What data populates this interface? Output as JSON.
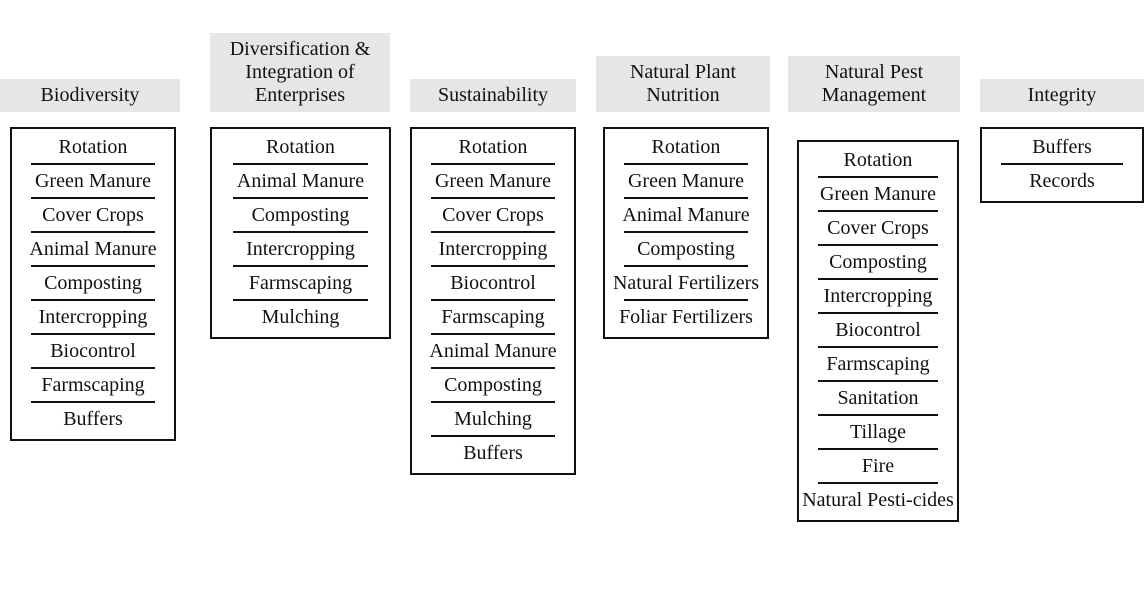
{
  "columns": [
    {
      "header": "Biodiversity",
      "items": [
        "Rotation",
        "Green Manure",
        "Cover Crops",
        "Animal Manure",
        "Composting",
        "Intercropping",
        "Biocontrol",
        "Farmscaping",
        "Buffers"
      ]
    },
    {
      "header": "Diversification & Integration of Enterprises",
      "items": [
        "Rotation",
        "Animal Manure",
        "Composting",
        "Intercropping",
        "Farmscaping",
        "Mulching"
      ]
    },
    {
      "header": "Sustainability",
      "items": [
        "Rotation",
        "Green Manure",
        "Cover Crops",
        "Intercropping",
        "Biocontrol",
        "Farmscaping",
        "Animal Manure",
        "Composting",
        "Mulching",
        "Buffers"
      ]
    },
    {
      "header": "Natural Plant Nutrition",
      "items": [
        "Rotation",
        "Green Manure",
        "Animal Manure",
        "Composting",
        "Natural Fertilizers",
        "Foliar Fertilizers"
      ]
    },
    {
      "header": "Natural Pest Management",
      "items": [
        "Rotation",
        "Green Manure",
        "Cover Crops",
        "Composting",
        "Intercropping",
        "Biocontrol",
        "Farmscaping",
        "Sanitation",
        "Tillage",
        "Fire",
        "Natural Pesti-cides"
      ]
    },
    {
      "header": "Integrity",
      "items": [
        "Buffers",
        "Records"
      ]
    }
  ]
}
